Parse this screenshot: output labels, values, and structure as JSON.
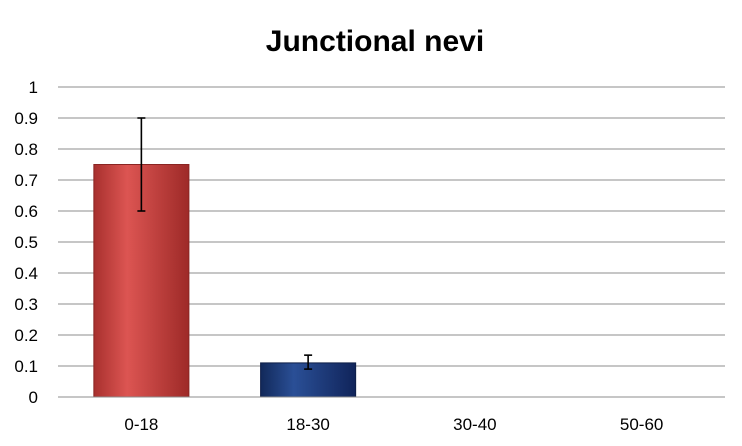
{
  "chart_data": {
    "type": "bar",
    "title": "Junctional nevi",
    "xlabel": "",
    "ylabel": "",
    "categories": [
      "0-18",
      "18-30",
      "30-40",
      "50-60"
    ],
    "values": [
      0.75,
      0.11,
      0,
      0
    ],
    "error_bars": [
      {
        "low": 0.6,
        "high": 0.9
      },
      {
        "low": 0.09,
        "high": 0.135
      },
      null,
      null
    ],
    "bar_colors": [
      "#c8403d",
      "#1f3f7f",
      "#c8403d",
      "#1f3f7f"
    ],
    "ylim": [
      0,
      1
    ],
    "yticks": [
      "0",
      "0.1",
      "0.2",
      "0.3",
      "0.4",
      "0.5",
      "0.6",
      "0.7",
      "0.8",
      "0.9",
      "1"
    ],
    "grid": true,
    "legend": "none"
  }
}
